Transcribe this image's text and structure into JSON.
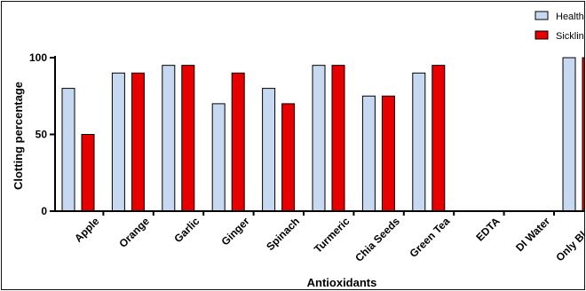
{
  "chart_data": {
    "type": "bar",
    "title": "",
    "xlabel": "Antioxidants",
    "ylabel": "Clotting percentage",
    "ylim": [
      0,
      100
    ],
    "yticks": [
      0,
      50,
      100
    ],
    "grid": false,
    "legend_position": "top-right",
    "categories": [
      "Apple",
      "Orange",
      "Garlic",
      "Ginger",
      "Spinach",
      "Turmeric",
      "Chia Seeds",
      "Green Tea",
      "EDTA",
      "DI Water",
      "Only Blood"
    ],
    "series": [
      {
        "name": "Health",
        "color": "#c6d9f1",
        "values": [
          80,
          90,
          95,
          70,
          80,
          95,
          75,
          90,
          0,
          0,
          100
        ]
      },
      {
        "name": "Sicklin",
        "color": "#e60000",
        "values": [
          50,
          90,
          95,
          90,
          70,
          95,
          75,
          95,
          0,
          0,
          100
        ]
      }
    ]
  }
}
